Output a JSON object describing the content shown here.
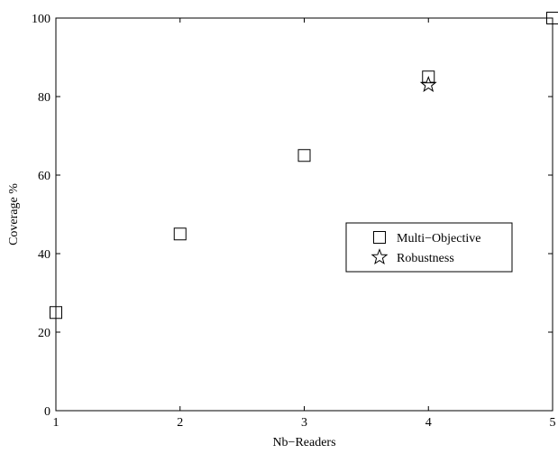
{
  "chart_data": {
    "type": "scatter",
    "title": "",
    "xlabel": "Nb−Readers",
    "ylabel": "Coverage %",
    "xlim": [
      1,
      5
    ],
    "ylim": [
      0,
      100
    ],
    "xticks": [
      1,
      2,
      3,
      4,
      5
    ],
    "yticks": [
      0,
      20,
      40,
      60,
      80,
      100
    ],
    "grid": false,
    "legend": "right",
    "series": [
      {
        "name": "Multi−Objective",
        "marker": "square",
        "x": [
          1,
          2,
          3,
          4,
          5
        ],
        "y": [
          25,
          45,
          65,
          85,
          100
        ]
      },
      {
        "name": "Robustness",
        "marker": "star",
        "x": [
          4
        ],
        "y": [
          83
        ]
      }
    ]
  }
}
